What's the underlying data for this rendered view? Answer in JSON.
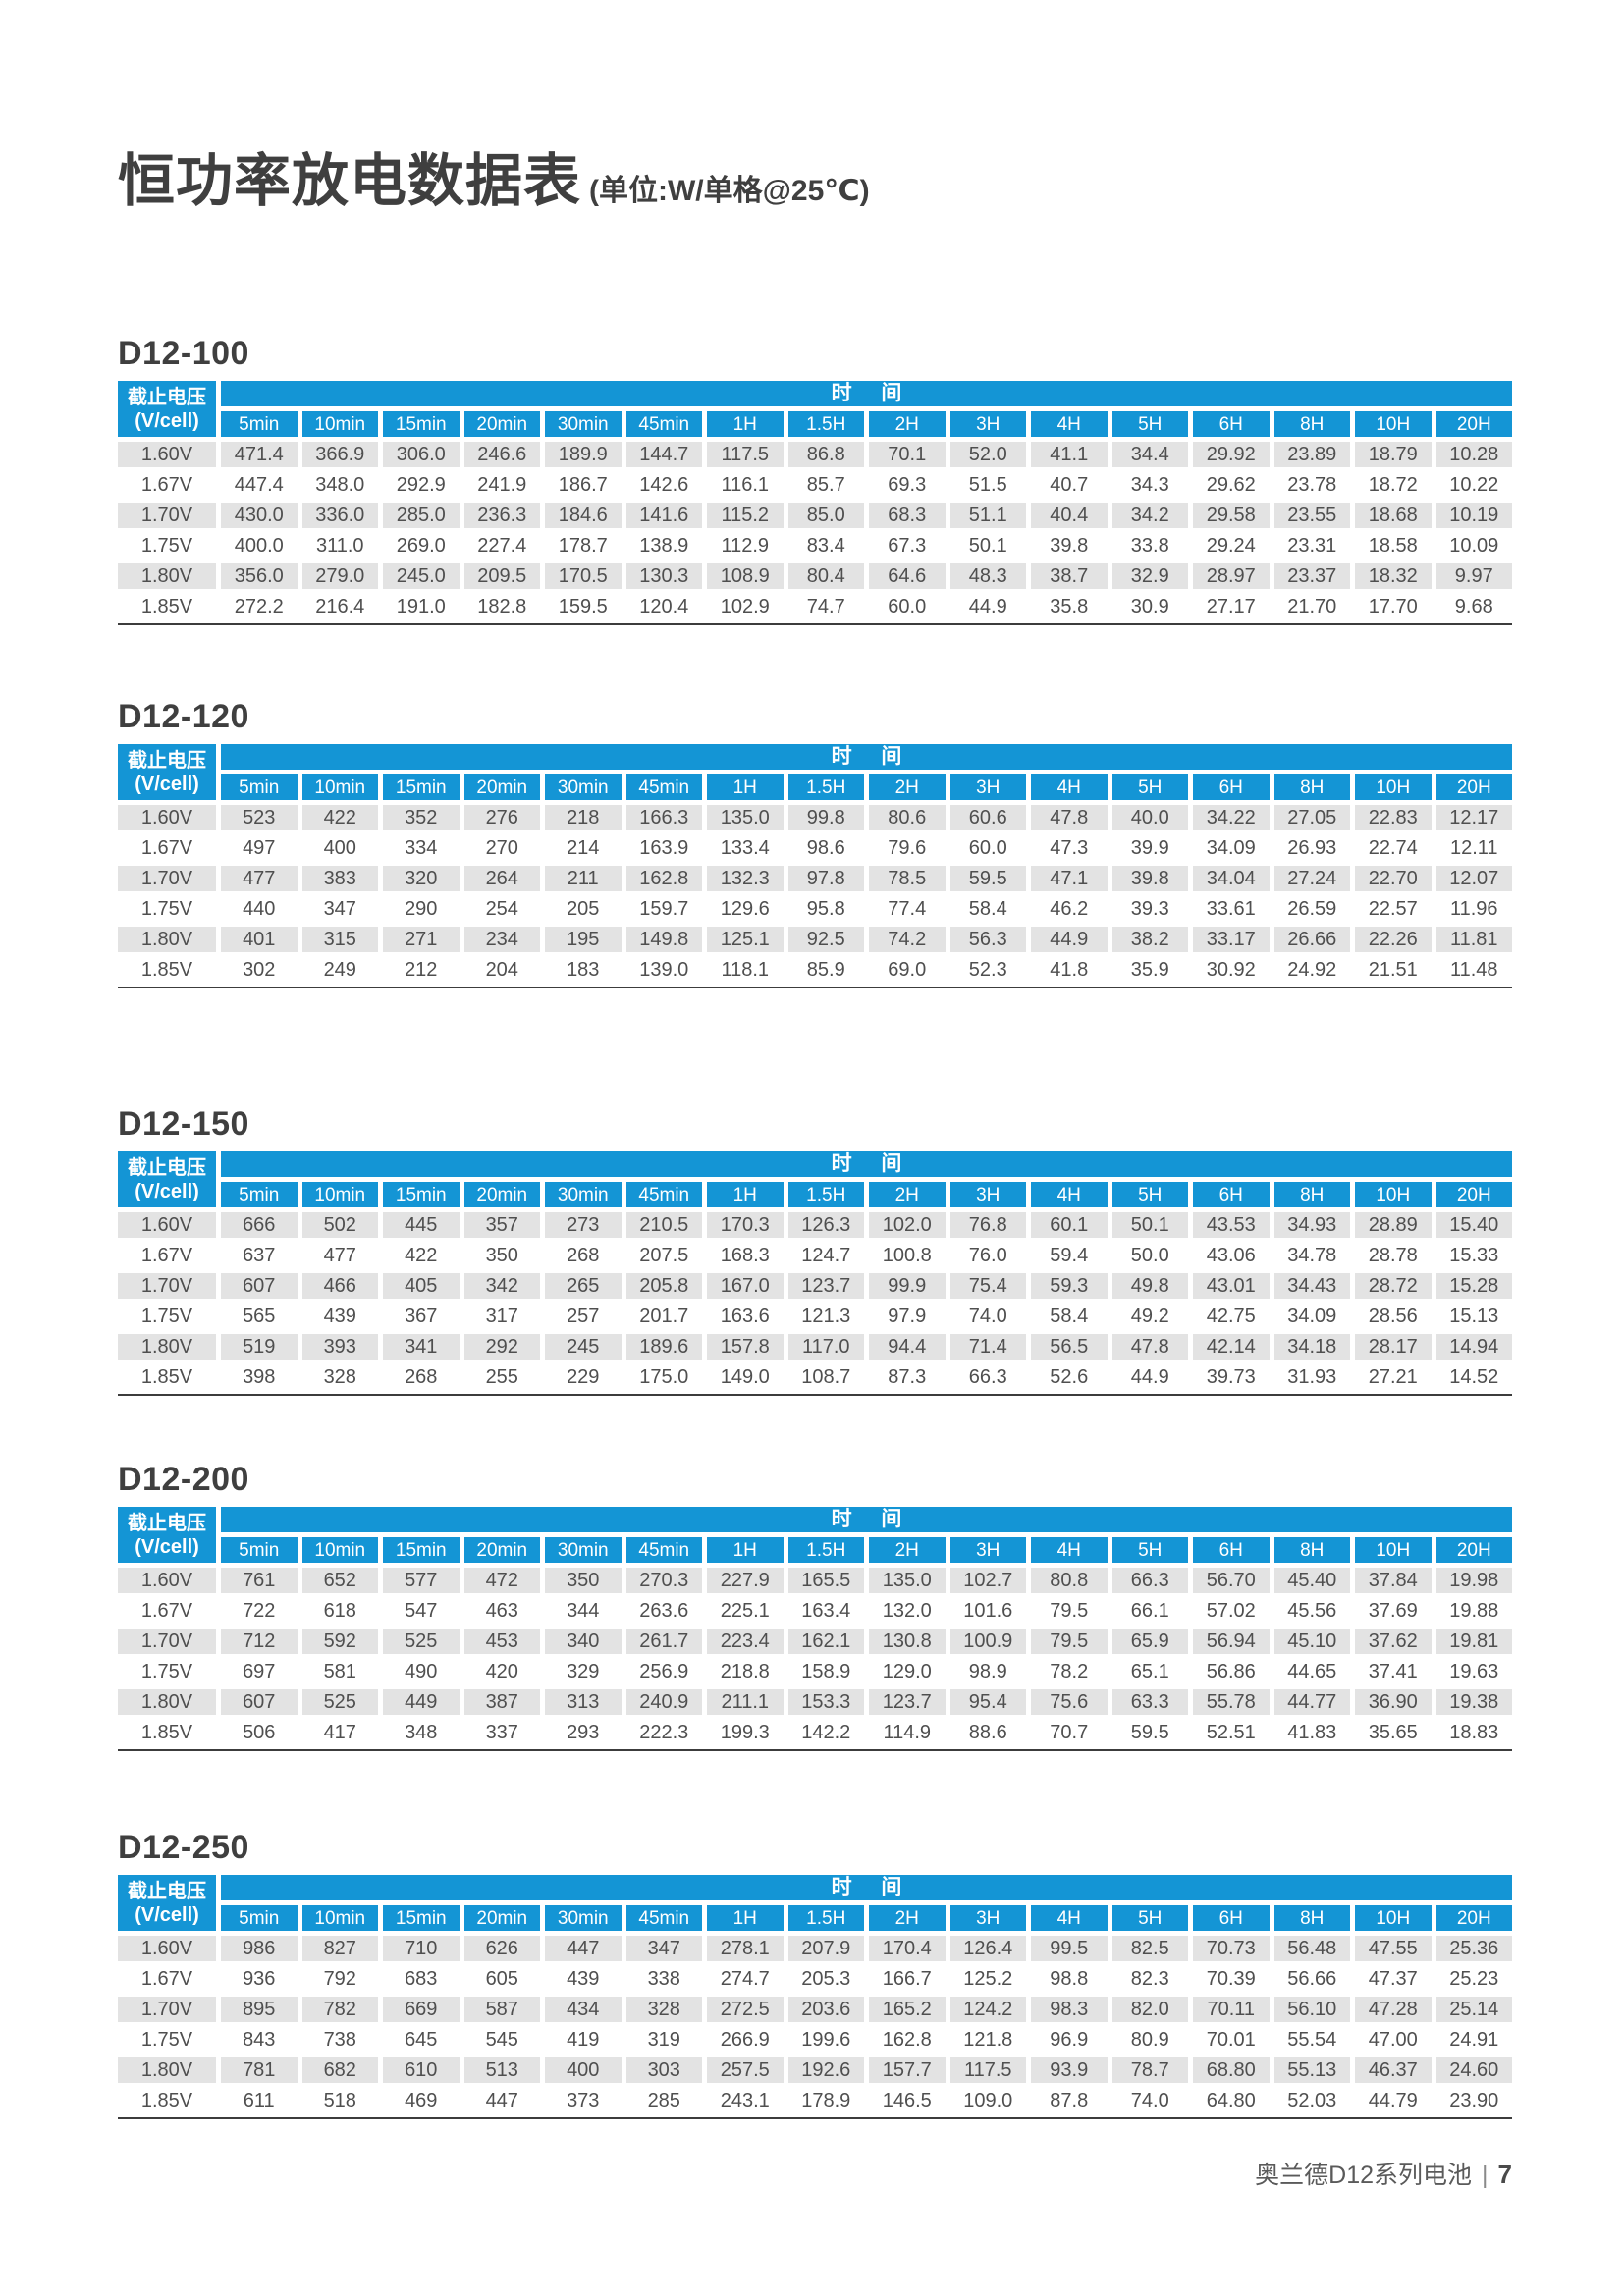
{
  "page": {
    "title": "恒功率放电数据表",
    "title_unit": "(单位:W/单格@25℃)",
    "footer_text": "奥兰德D12系列电池",
    "footer_separator": "|",
    "footer_page": "7"
  },
  "colors": {
    "header_blue": "#1495d5",
    "row_gray": "#e3e3e3",
    "text_dark": "#4f4f4f"
  },
  "table_template": {
    "row_header_line1": "截止电压",
    "row_header_line2": "(V/cell)",
    "time_group_label": "时 间",
    "time_columns": [
      "5min",
      "10min",
      "15min",
      "20min",
      "30min",
      "45min",
      "1H",
      "1.5H",
      "2H",
      "3H",
      "4H",
      "5H",
      "6H",
      "8H",
      "10H",
      "20H"
    ]
  },
  "tables": [
    {
      "model": "D12-100",
      "rows": [
        {
          "voltage": "1.60V",
          "values": [
            "471.4",
            "366.9",
            "306.0",
            "246.6",
            "189.9",
            "144.7",
            "117.5",
            "86.8",
            "70.1",
            "52.0",
            "41.1",
            "34.4",
            "29.92",
            "23.89",
            "18.79",
            "10.28"
          ]
        },
        {
          "voltage": "1.67V",
          "values": [
            "447.4",
            "348.0",
            "292.9",
            "241.9",
            "186.7",
            "142.6",
            "116.1",
            "85.7",
            "69.3",
            "51.5",
            "40.7",
            "34.3",
            "29.62",
            "23.78",
            "18.72",
            "10.22"
          ]
        },
        {
          "voltage": "1.70V",
          "values": [
            "430.0",
            "336.0",
            "285.0",
            "236.3",
            "184.6",
            "141.6",
            "115.2",
            "85.0",
            "68.3",
            "51.1",
            "40.4",
            "34.2",
            "29.58",
            "23.55",
            "18.68",
            "10.19"
          ]
        },
        {
          "voltage": "1.75V",
          "values": [
            "400.0",
            "311.0",
            "269.0",
            "227.4",
            "178.7",
            "138.9",
            "112.9",
            "83.4",
            "67.3",
            "50.1",
            "39.8",
            "33.8",
            "29.24",
            "23.31",
            "18.58",
            "10.09"
          ]
        },
        {
          "voltage": "1.80V",
          "values": [
            "356.0",
            "279.0",
            "245.0",
            "209.5",
            "170.5",
            "130.3",
            "108.9",
            "80.4",
            "64.6",
            "48.3",
            "38.7",
            "32.9",
            "28.97",
            "23.37",
            "18.32",
            "9.97"
          ]
        },
        {
          "voltage": "1.85V",
          "values": [
            "272.2",
            "216.4",
            "191.0",
            "182.8",
            "159.5",
            "120.4",
            "102.9",
            "74.7",
            "60.0",
            "44.9",
            "35.8",
            "30.9",
            "27.17",
            "21.70",
            "17.70",
            "9.68"
          ]
        }
      ]
    },
    {
      "model": "D12-120",
      "rows": [
        {
          "voltage": "1.60V",
          "values": [
            "523",
            "422",
            "352",
            "276",
            "218",
            "166.3",
            "135.0",
            "99.8",
            "80.6",
            "60.6",
            "47.8",
            "40.0",
            "34.22",
            "27.05",
            "22.83",
            "12.17"
          ]
        },
        {
          "voltage": "1.67V",
          "values": [
            "497",
            "400",
            "334",
            "270",
            "214",
            "163.9",
            "133.4",
            "98.6",
            "79.6",
            "60.0",
            "47.3",
            "39.9",
            "34.09",
            "26.93",
            "22.74",
            "12.11"
          ]
        },
        {
          "voltage": "1.70V",
          "values": [
            "477",
            "383",
            "320",
            "264",
            "211",
            "162.8",
            "132.3",
            "97.8",
            "78.5",
            "59.5",
            "47.1",
            "39.8",
            "34.04",
            "27.24",
            "22.70",
            "12.07"
          ]
        },
        {
          "voltage": "1.75V",
          "values": [
            "440",
            "347",
            "290",
            "254",
            "205",
            "159.7",
            "129.6",
            "95.8",
            "77.4",
            "58.4",
            "46.2",
            "39.3",
            "33.61",
            "26.59",
            "22.57",
            "11.96"
          ]
        },
        {
          "voltage": "1.80V",
          "values": [
            "401",
            "315",
            "271",
            "234",
            "195",
            "149.8",
            "125.1",
            "92.5",
            "74.2",
            "56.3",
            "44.9",
            "38.2",
            "33.17",
            "26.66",
            "22.26",
            "11.81"
          ]
        },
        {
          "voltage": "1.85V",
          "values": [
            "302",
            "249",
            "212",
            "204",
            "183",
            "139.0",
            "118.1",
            "85.9",
            "69.0",
            "52.3",
            "41.8",
            "35.9",
            "30.92",
            "24.92",
            "21.51",
            "11.48"
          ]
        }
      ]
    },
    {
      "model": "D12-150",
      "rows": [
        {
          "voltage": "1.60V",
          "values": [
            "666",
            "502",
            "445",
            "357",
            "273",
            "210.5",
            "170.3",
            "126.3",
            "102.0",
            "76.8",
            "60.1",
            "50.1",
            "43.53",
            "34.93",
            "28.89",
            "15.40"
          ]
        },
        {
          "voltage": "1.67V",
          "values": [
            "637",
            "477",
            "422",
            "350",
            "268",
            "207.5",
            "168.3",
            "124.7",
            "100.8",
            "76.0",
            "59.4",
            "50.0",
            "43.06",
            "34.78",
            "28.78",
            "15.33"
          ]
        },
        {
          "voltage": "1.70V",
          "values": [
            "607",
            "466",
            "405",
            "342",
            "265",
            "205.8",
            "167.0",
            "123.7",
            "99.9",
            "75.4",
            "59.3",
            "49.8",
            "43.01",
            "34.43",
            "28.72",
            "15.28"
          ]
        },
        {
          "voltage": "1.75V",
          "values": [
            "565",
            "439",
            "367",
            "317",
            "257",
            "201.7",
            "163.6",
            "121.3",
            "97.9",
            "74.0",
            "58.4",
            "49.2",
            "42.75",
            "34.09",
            "28.56",
            "15.13"
          ]
        },
        {
          "voltage": "1.80V",
          "values": [
            "519",
            "393",
            "341",
            "292",
            "245",
            "189.6",
            "157.8",
            "117.0",
            "94.4",
            "71.4",
            "56.5",
            "47.8",
            "42.14",
            "34.18",
            "28.17",
            "14.94"
          ]
        },
        {
          "voltage": "1.85V",
          "values": [
            "398",
            "328",
            "268",
            "255",
            "229",
            "175.0",
            "149.0",
            "108.7",
            "87.3",
            "66.3",
            "52.6",
            "44.9",
            "39.73",
            "31.93",
            "27.21",
            "14.52"
          ]
        }
      ]
    },
    {
      "model": "D12-200",
      "rows": [
        {
          "voltage": "1.60V",
          "values": [
            "761",
            "652",
            "577",
            "472",
            "350",
            "270.3",
            "227.9",
            "165.5",
            "135.0",
            "102.7",
            "80.8",
            "66.3",
            "56.70",
            "45.40",
            "37.84",
            "19.98"
          ]
        },
        {
          "voltage": "1.67V",
          "values": [
            "722",
            "618",
            "547",
            "463",
            "344",
            "263.6",
            "225.1",
            "163.4",
            "132.0",
            "101.6",
            "79.5",
            "66.1",
            "57.02",
            "45.56",
            "37.69",
            "19.88"
          ]
        },
        {
          "voltage": "1.70V",
          "values": [
            "712",
            "592",
            "525",
            "453",
            "340",
            "261.7",
            "223.4",
            "162.1",
            "130.8",
            "100.9",
            "79.5",
            "65.9",
            "56.94",
            "45.10",
            "37.62",
            "19.81"
          ]
        },
        {
          "voltage": "1.75V",
          "values": [
            "697",
            "581",
            "490",
            "420",
            "329",
            "256.9",
            "218.8",
            "158.9",
            "129.0",
            "98.9",
            "78.2",
            "65.1",
            "56.86",
            "44.65",
            "37.41",
            "19.63"
          ]
        },
        {
          "voltage": "1.80V",
          "values": [
            "607",
            "525",
            "449",
            "387",
            "313",
            "240.9",
            "211.1",
            "153.3",
            "123.7",
            "95.4",
            "75.6",
            "63.3",
            "55.78",
            "44.77",
            "36.90",
            "19.38"
          ]
        },
        {
          "voltage": "1.85V",
          "values": [
            "506",
            "417",
            "348",
            "337",
            "293",
            "222.3",
            "199.3",
            "142.2",
            "114.9",
            "88.6",
            "70.7",
            "59.5",
            "52.51",
            "41.83",
            "35.65",
            "18.83"
          ]
        }
      ]
    },
    {
      "model": "D12-250",
      "rows": [
        {
          "voltage": "1.60V",
          "values": [
            "986",
            "827",
            "710",
            "626",
            "447",
            "347",
            "278.1",
            "207.9",
            "170.4",
            "126.4",
            "99.5",
            "82.5",
            "70.73",
            "56.48",
            "47.55",
            "25.36"
          ]
        },
        {
          "voltage": "1.67V",
          "values": [
            "936",
            "792",
            "683",
            "605",
            "439",
            "338",
            "274.7",
            "205.3",
            "166.7",
            "125.2",
            "98.8",
            "82.3",
            "70.39",
            "56.66",
            "47.37",
            "25.23"
          ]
        },
        {
          "voltage": "1.70V",
          "values": [
            "895",
            "782",
            "669",
            "587",
            "434",
            "328",
            "272.5",
            "203.6",
            "165.2",
            "124.2",
            "98.3",
            "82.0",
            "70.11",
            "56.10",
            "47.28",
            "25.14"
          ]
        },
        {
          "voltage": "1.75V",
          "values": [
            "843",
            "738",
            "645",
            "545",
            "419",
            "319",
            "266.9",
            "199.6",
            "162.8",
            "121.8",
            "96.9",
            "80.9",
            "70.01",
            "55.54",
            "47.00",
            "24.91"
          ]
        },
        {
          "voltage": "1.80V",
          "values": [
            "781",
            "682",
            "610",
            "513",
            "400",
            "303",
            "257.5",
            "192.6",
            "157.7",
            "117.5",
            "93.9",
            "78.7",
            "68.80",
            "55.13",
            "46.37",
            "24.60"
          ]
        },
        {
          "voltage": "1.85V",
          "values": [
            "611",
            "518",
            "469",
            "447",
            "373",
            "285",
            "243.1",
            "178.9",
            "146.5",
            "109.0",
            "87.8",
            "74.0",
            "64.80",
            "52.03",
            "44.79",
            "23.90"
          ]
        }
      ]
    }
  ]
}
